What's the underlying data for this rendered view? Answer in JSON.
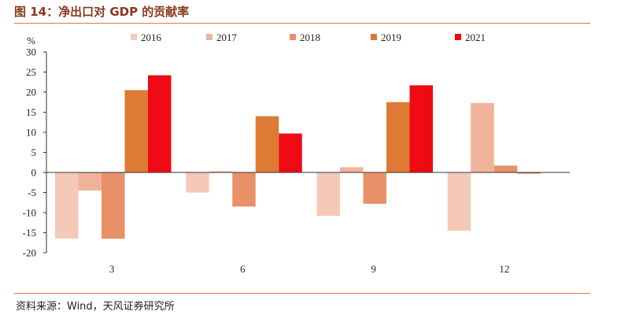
{
  "header": {
    "title": "图 14：净出口对 GDP 的贡献率"
  },
  "footer": {
    "source": "资料来源：Wind，天风证券研究所"
  },
  "chart_data": {
    "type": "bar",
    "title": "图 14：净出口对 GDP 的贡献率",
    "ylabel": "%",
    "xlabel": "",
    "ylim": [
      -20,
      30
    ],
    "yticks": [
      30,
      25,
      20,
      15,
      10,
      5,
      0,
      -5,
      -10,
      -15,
      -20
    ],
    "categories": [
      "3",
      "6",
      "9",
      "12"
    ],
    "grid": false,
    "legend_position": "top",
    "series": [
      {
        "name": "2016",
        "color": "#f5c9b8",
        "values": [
          -16.5,
          -5.0,
          -10.8,
          -14.5
        ]
      },
      {
        "name": "2017",
        "color": "#f0b39a",
        "values": [
          -4.5,
          0.3,
          1.3,
          17.3
        ]
      },
      {
        "name": "2018",
        "color": "#e89068",
        "values": [
          -16.5,
          -8.5,
          -7.8,
          1.7
        ]
      },
      {
        "name": "2019",
        "color": "#de7a33",
        "values": [
          20.5,
          14.0,
          17.5,
          -0.3
        ]
      },
      {
        "name": "2021",
        "color": "#f00a14",
        "values": [
          24.2,
          9.7,
          21.7,
          null
        ]
      }
    ]
  }
}
